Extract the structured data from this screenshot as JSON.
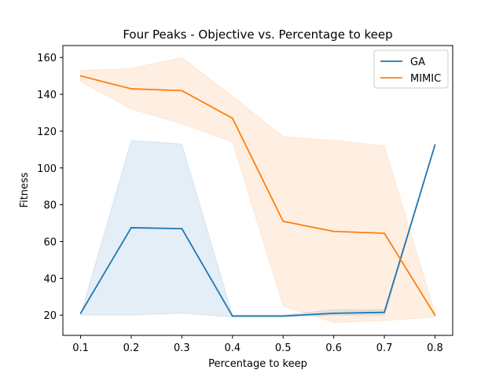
{
  "chart_data": {
    "type": "line",
    "title": "Four Peaks - Objective vs. Percentage to keep",
    "xlabel": "Percentage to keep",
    "ylabel": "Fitness",
    "xlim": [
      0.065,
      0.835
    ],
    "ylim": [
      9.0,
      166.5
    ],
    "xticks": [
      0.1,
      0.2,
      0.3,
      0.4,
      0.5,
      0.6,
      0.7,
      0.8
    ],
    "xtick_labels": [
      "0.1",
      "0.2",
      "0.3",
      "0.4",
      "0.5",
      "0.6",
      "0.7",
      "0.8"
    ],
    "yticks": [
      20,
      40,
      60,
      80,
      100,
      120,
      140,
      160
    ],
    "ytick_labels": [
      "20",
      "40",
      "60",
      "80",
      "100",
      "120",
      "140",
      "160"
    ],
    "grid": false,
    "legend_position": "top-right",
    "x": [
      0.1,
      0.2,
      0.3,
      0.4,
      0.5,
      0.6,
      0.7,
      0.8
    ],
    "series": [
      {
        "name": "GA",
        "color": "#1f77b4",
        "values": [
          21,
          67.5,
          67,
          19.5,
          19.5,
          21,
          21.5,
          112.5
        ],
        "band_upper": [
          20,
          115,
          113,
          20,
          20,
          23,
          23,
          113
        ],
        "band_lower": [
          20,
          20,
          21,
          19,
          19,
          20,
          20,
          112
        ]
      },
      {
        "name": "MIMIC",
        "color": "#ff7f0e",
        "values": [
          150,
          143,
          142,
          127,
          71,
          65.5,
          64.5,
          20
        ],
        "band_upper": [
          153,
          154,
          160,
          139,
          117,
          115,
          112,
          21
        ],
        "band_lower": [
          147,
          132,
          124,
          114,
          25,
          16,
          17,
          19
        ]
      }
    ]
  }
}
